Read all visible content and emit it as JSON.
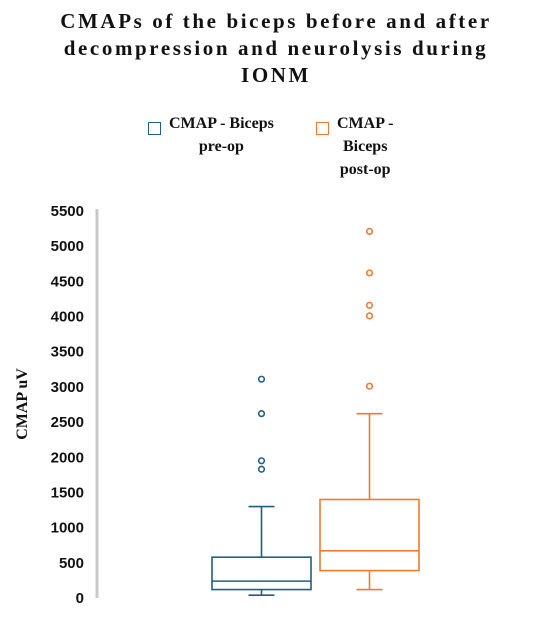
{
  "chart_data": {
    "type": "box",
    "title": "CMAPs of the biceps before and after\ndecompression and neurolysis during\nIONM",
    "ylabel": "CMAP uV",
    "ylim": [
      0,
      5500
    ],
    "yticks": [
      "0",
      "500",
      "1000",
      "1500",
      "2000",
      "2500",
      "3000",
      "3500",
      "4000",
      "4500",
      "5000",
      "5500"
    ],
    "legend_position": "top",
    "series": [
      {
        "name": "CMAP - Biceps pre-op",
        "legend_label": "CMAP - Biceps\npre-op",
        "color": "#1f5f7f",
        "whisker_low": 40,
        "q1": 120,
        "median": 240,
        "q3": 580,
        "whisker_high": 1300,
        "outliers": [
          1830,
          1950,
          2620,
          3110
        ]
      },
      {
        "name": "CMAP - Biceps post-op",
        "legend_label": "CMAP -\nBiceps\npost-op",
        "color": "#f07a30",
        "whisker_low": 120,
        "q1": 390,
        "median": 670,
        "q3": 1400,
        "whisker_high": 2620,
        "outliers": [
          3010,
          4010,
          4160,
          4620,
          5210
        ]
      }
    ]
  }
}
